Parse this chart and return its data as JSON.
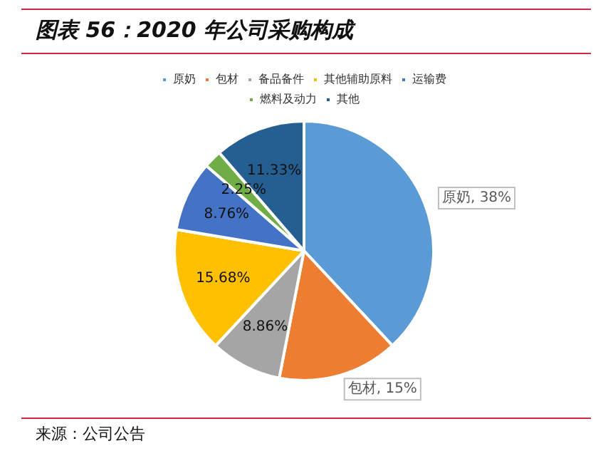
{
  "chart_data": {
    "type": "pie",
    "title": "图表 56：2020 年公司采购构成",
    "categories": [
      "原奶",
      "包材",
      "备品备件",
      "其他辅助原料",
      "运输费",
      "燃料及动力",
      "其他"
    ],
    "values": [
      38,
      15,
      8.86,
      15.68,
      8.76,
      2.25,
      11.33
    ],
    "colors": [
      "#5b9bd5",
      "#ed7d31",
      "#a5a5a5",
      "#ffc000",
      "#4472c4",
      "#70ad47",
      "#255e91"
    ],
    "value_labels": [
      "原奶, 38%",
      "包材, 15%",
      "8.86%",
      "15.68%",
      "8.76%",
      "2.25%",
      "11.33%"
    ],
    "legend": "top",
    "annotations": [
      "来源：公司公告"
    ]
  }
}
